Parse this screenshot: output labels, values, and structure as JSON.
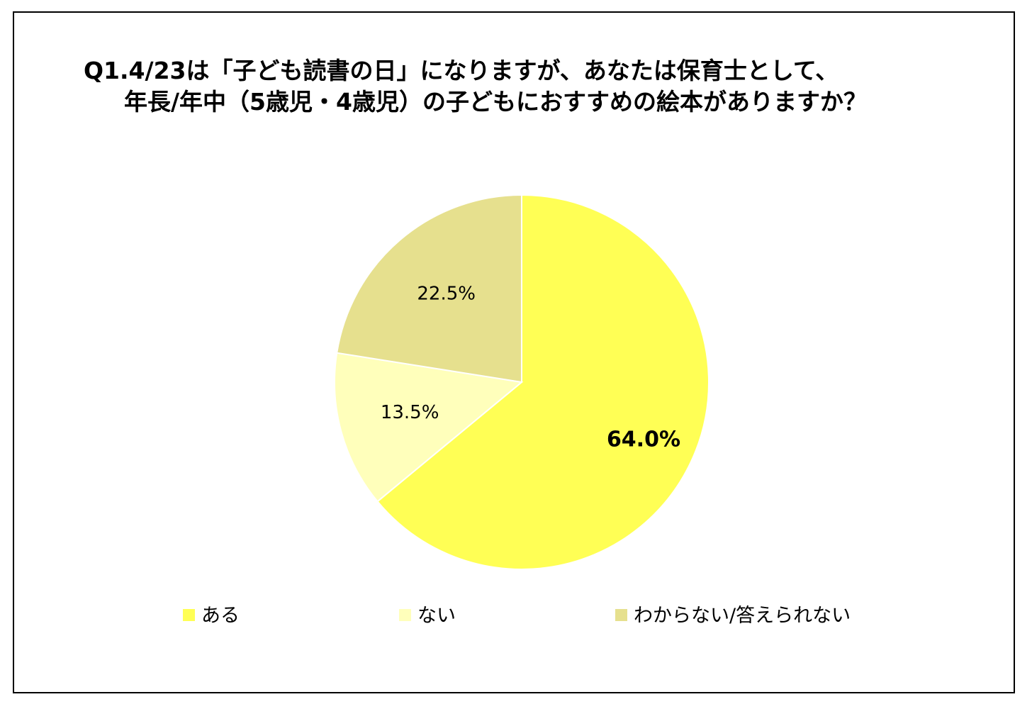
{
  "title_lines": [
    "Q1.4/23は「子ども読書の日」になりますが、あなたは保育士として、",
    "年長/年中（5歳児・4歳児）の子どもにおすすめの絵本がありますか？"
  ],
  "chart_data": {
    "type": "pie",
    "title": "Q1.4/23は「子ども読書の日」になりますが、あなたは保育士として、年長/年中（5歳児・4歳児）の子どもにおすすめの絵本がありますか？",
    "start": "12 o'clock",
    "direction": "clockwise",
    "legend_position": "bottom",
    "slices": [
      {
        "label": "ある",
        "value": 64.0,
        "display": "64.0%",
        "color": "#FFFF55",
        "label_bold": true
      },
      {
        "label": "ない",
        "value": 13.5,
        "display": "13.5%",
        "color": "#FFFFBB",
        "label_bold": false
      },
      {
        "label": "わからない/答えられない",
        "value": 22.5,
        "display": "22.5%",
        "color": "#E6E08E",
        "label_bold": false
      }
    ]
  }
}
